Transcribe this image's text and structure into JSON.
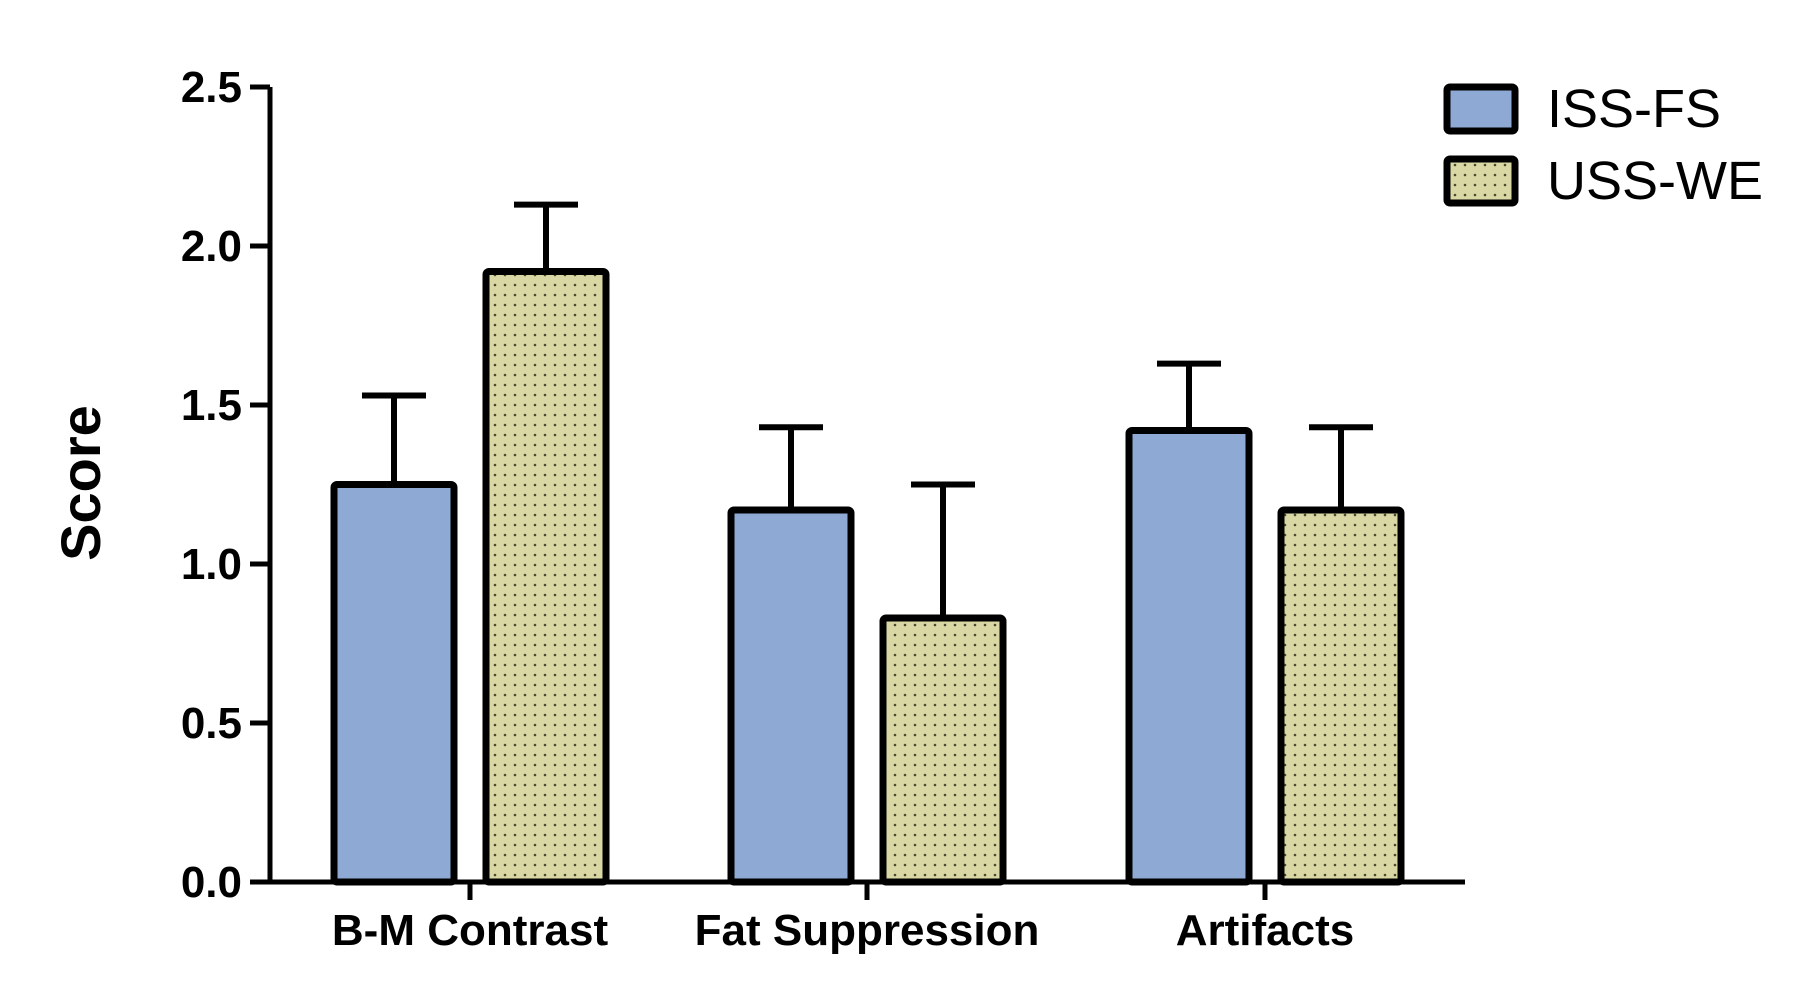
{
  "chart_data": {
    "type": "bar",
    "title": "",
    "xlabel": "",
    "ylabel": "Score",
    "ylim": [
      0,
      2.5
    ],
    "yticks": [
      0.0,
      0.5,
      1.0,
      1.5,
      2.0,
      2.5
    ],
    "ytick_labels": [
      "0.0",
      "0.5",
      "1.0",
      "1.5",
      "2.0",
      "2.5"
    ],
    "categories": [
      "B-M Contrast",
      "Fat Suppression",
      "Artifacts"
    ],
    "series": [
      {
        "name": "ISS-FS",
        "values": [
          1.25,
          1.17,
          1.42
        ],
        "error_upper": [
          0.28,
          0.26,
          0.21
        ],
        "color": "#8eaad4",
        "pattern": "solid"
      },
      {
        "name": "USS-WE",
        "values": [
          1.92,
          0.83,
          1.17
        ],
        "error_upper": [
          0.21,
          0.42,
          0.26
        ],
        "color": "#d9d7a3",
        "pattern": "dotted"
      }
    ],
    "legend_position": "top-right"
  }
}
